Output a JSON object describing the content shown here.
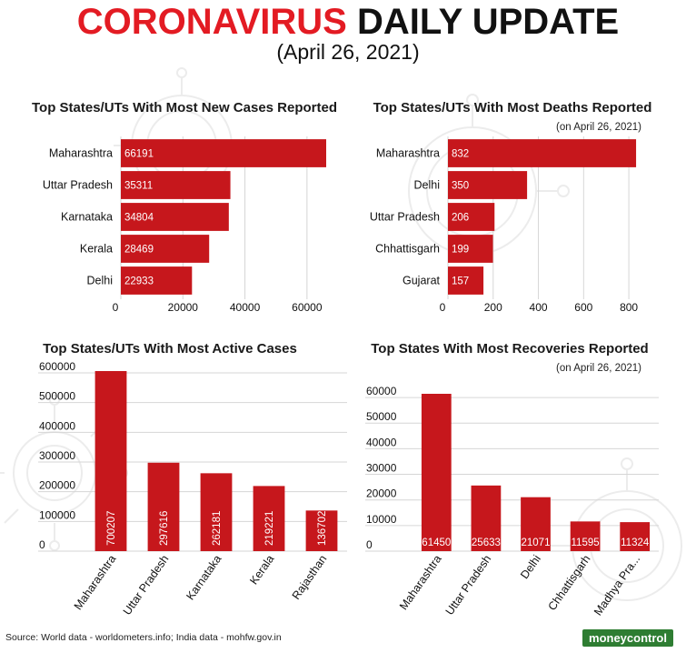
{
  "header": {
    "title_red": "CORONAVIRUS",
    "title_dark": "DAILY UPDATE",
    "date": "(April 26, 2021)"
  },
  "source": "Source: World data - worldometers.info; India data - mohfw.gov.in",
  "logo": "moneycontrol",
  "colors": {
    "bar": "#c6171c",
    "title_red": "#e31b23",
    "logo_green": "#2e7d32"
  },
  "chart_data": [
    {
      "type": "bar",
      "orientation": "horizontal",
      "title": "Top States/UTs With Most New Cases Reported",
      "note": "",
      "categories": [
        "Maharashtra",
        "Uttar Pradesh",
        "Karnataka",
        "Kerala",
        "Delhi"
      ],
      "values": [
        66191,
        35311,
        34804,
        28469,
        22933
      ],
      "value_labels": [
        "66191",
        "35311",
        "34804",
        "28469",
        "22933"
      ],
      "ticks": [
        0,
        20000,
        40000,
        60000
      ],
      "xlim": [
        0,
        70000
      ],
      "grid": true
    },
    {
      "type": "bar",
      "orientation": "horizontal",
      "title": "Top States/UTs With Most Deaths Reported",
      "note": "(on April 26, 2021)",
      "categories": [
        "Maharashtra",
        "Delhi",
        "Uttar Pradesh",
        "Chhattisgarh",
        "Gujarat"
      ],
      "values": [
        832,
        350,
        206,
        199,
        157
      ],
      "value_labels": [
        "832",
        "350",
        "206",
        "199",
        "157"
      ],
      "ticks": [
        0,
        200,
        400,
        600,
        800
      ],
      "xlim": [
        0,
        880
      ],
      "grid": true
    },
    {
      "type": "bar",
      "orientation": "vertical",
      "title": "Top States/UTs With Most Active Cases",
      "note": "",
      "categories": [
        "Maharashtra",
        "Uttar Pradesh",
        "Karnataka",
        "Kerala",
        "Rajasthan"
      ],
      "values": [
        700207,
        297616,
        262181,
        219221,
        136702
      ],
      "value_labels": [
        "700207",
        "297616",
        "262181",
        "219221",
        "136702"
      ],
      "ticks": [
        0,
        100000,
        200000,
        300000,
        400000,
        500000,
        600000
      ],
      "ylim": [
        0,
        600000
      ],
      "grid": true
    },
    {
      "type": "bar",
      "orientation": "vertical",
      "title": "Top States With Most Recoveries Reported",
      "note": "(on April 26, 2021)",
      "categories": [
        "Maharashtra",
        "Uttar Pradesh",
        "Delhi",
        "Chhattisgarh",
        "Madhya Pra..."
      ],
      "values": [
        61450,
        25633,
        21071,
        11595,
        11324
      ],
      "value_labels": [
        "61450",
        "25633",
        "21071",
        "11595",
        "11324"
      ],
      "ticks": [
        0,
        10000,
        20000,
        30000,
        40000,
        50000,
        60000
      ],
      "ylim": [
        0,
        65000
      ],
      "grid": true
    }
  ]
}
